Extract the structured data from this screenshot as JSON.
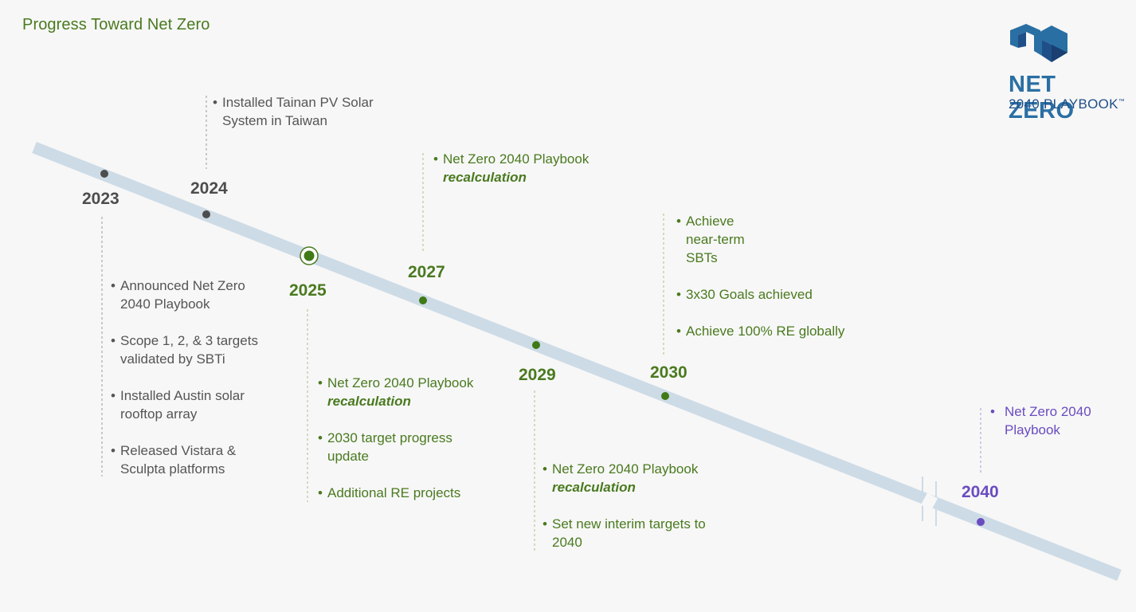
{
  "title": "Progress Toward Net Zero",
  "logo": {
    "line1": "NET ZERO",
    "line2": "2040 PLAYBOOK",
    "tm": "™"
  },
  "colors": {
    "green": "#4a7a1f",
    "gray": "#4d4d4d",
    "purple": "#6a4cc0",
    "band": "#cddbe6"
  },
  "milestones": {
    "y2023": {
      "year": "2023",
      "items": [
        {
          "text": "Announced Net Zero 2040 Playbook"
        },
        {
          "text": "Scope 1, 2, & 3 targets validated by SBTi"
        },
        {
          "text": "Installed Austin solar rooftop array"
        },
        {
          "text": "Released Vistara & Sculpta platforms"
        }
      ]
    },
    "y2024": {
      "year": "2024",
      "items": [
        {
          "text": "Installed Tainan PV Solar System in Taiwan"
        }
      ]
    },
    "y2025": {
      "year": "2025",
      "items": [
        {
          "text": "Net Zero 2040 Playbook ",
          "em": "recalculation"
        },
        {
          "text": "2030 target progress update"
        },
        {
          "text": "Additional RE projects"
        }
      ]
    },
    "y2027": {
      "year": "2027",
      "items": [
        {
          "text": "Net Zero 2040 Playbook ",
          "em": "recalculation"
        }
      ]
    },
    "y2029": {
      "year": "2029",
      "items": [
        {
          "text": "Net Zero 2040 Playbook ",
          "em": "recalculation"
        },
        {
          "text": "Set new interim targets to 2040"
        }
      ]
    },
    "y2030": {
      "year": "2030",
      "items": [
        {
          "text": "Achieve near-term SBTs"
        },
        {
          "text": "3x30 Goals achieved"
        },
        {
          "text": "Achieve 100% RE globally"
        }
      ]
    },
    "y2040": {
      "year": "2040",
      "items": [
        {
          "text": "Net Zero 2040 Playbook"
        }
      ]
    }
  }
}
